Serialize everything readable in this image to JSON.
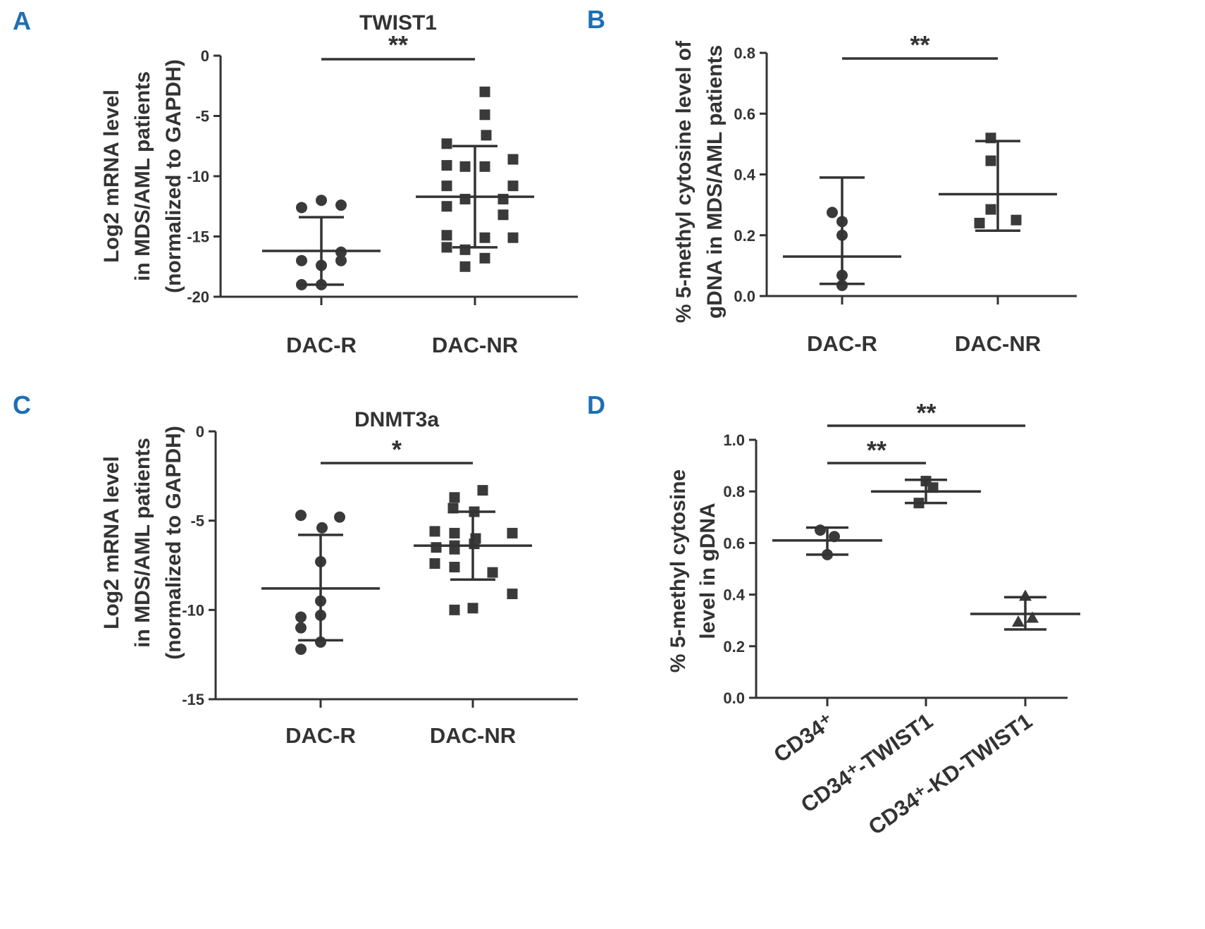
{
  "chart_data": [
    {
      "panel": "A",
      "type": "scatter",
      "title": "TWIST1",
      "ylabel": [
        "Log2  mRNA level",
        "in MDS/AML patients",
        "(normalized to GAPDH)"
      ],
      "categories": [
        "DAC-R",
        "DAC-NR"
      ],
      "ylim": [
        -20,
        0
      ],
      "yticks": [
        0,
        -5,
        -10,
        -15,
        -20
      ],
      "ytick_labels": [
        "0",
        "-5",
        "-10",
        "-15",
        "-20"
      ],
      "series": [
        {
          "name": "DAC-R",
          "marker": "circle",
          "mean": -16.2,
          "sd_upper": -13.4,
          "sd_lower": -19.0,
          "values": [
            -12.0,
            -12.4,
            -12.6,
            -16.3,
            -17.0,
            -17.4,
            -17.0,
            -19.0,
            -19.0
          ]
        },
        {
          "name": "DAC-NR",
          "marker": "square",
          "mean": -11.7,
          "sd_upper": -7.5,
          "sd_lower": -15.9,
          "values": [
            -3.0,
            -4.9,
            -6.6,
            -7.3,
            -8.6,
            -9.1,
            -9.2,
            -9.2,
            -10.8,
            -10.8,
            -11.9,
            -11.9,
            -12.5,
            -13.2,
            -14.9,
            -15.1,
            -15.1,
            -15.9,
            -16.1,
            -16.8,
            -17.5
          ]
        }
      ],
      "significance": {
        "label": "**",
        "between": [
          "DAC-R",
          "DAC-NR"
        ]
      }
    },
    {
      "panel": "B",
      "type": "scatter",
      "title": "",
      "ylabel": [
        "% 5-methyl cytosine level of",
        "gDNA in MDS/AML patients"
      ],
      "categories": [
        "DAC-R",
        "DAC-NR"
      ],
      "ylim": [
        0,
        0.8
      ],
      "yticks": [
        0,
        0.2,
        0.4,
        0.6,
        0.8
      ],
      "ytick_labels": [
        "0.0",
        "0.2",
        "0.4",
        "0.6",
        "0.8"
      ],
      "series": [
        {
          "name": "DAC-R",
          "marker": "circle",
          "mean": 0.13,
          "sd_upper": 0.39,
          "sd_lower": 0.04,
          "values": [
            0.275,
            0.245,
            0.2,
            0.068,
            0.035
          ]
        },
        {
          "name": "DAC-NR",
          "marker": "square",
          "mean": 0.335,
          "sd_upper": 0.51,
          "sd_lower": 0.215,
          "values": [
            0.52,
            0.445,
            0.285,
            0.24,
            0.25
          ]
        }
      ],
      "significance": {
        "label": "**",
        "between": [
          "DAC-R",
          "DAC-NR"
        ]
      }
    },
    {
      "panel": "C",
      "type": "scatter",
      "title": "DNMT3a",
      "ylabel": [
        "Log2  mRNA level",
        "in MDS/AML patients",
        "(normalized to GAPDH)"
      ],
      "categories": [
        "DAC-R",
        "DAC-NR"
      ],
      "ylim": [
        -15,
        0
      ],
      "yticks": [
        0,
        -5,
        -10,
        -15
      ],
      "ytick_labels": [
        "0",
        "-5",
        "-10",
        "-15"
      ],
      "series": [
        {
          "name": "DAC-R",
          "marker": "circle",
          "mean": -8.8,
          "sd_upper": -5.8,
          "sd_lower": -11.7,
          "values": [
            -4.7,
            -4.8,
            -5.4,
            -7.3,
            -9.5,
            -10.3,
            -10.4,
            -11.0,
            -11.8,
            -12.2
          ]
        },
        {
          "name": "DAC-NR",
          "marker": "square",
          "mean": -6.4,
          "sd_upper": -4.5,
          "sd_lower": -8.3,
          "values": [
            -3.3,
            -3.7,
            -4.3,
            -4.5,
            -5.6,
            -5.7,
            -5.7,
            -6.0,
            -6.3,
            -6.4,
            -6.5,
            -6.6,
            -7.4,
            -7.6,
            -7.9,
            -9.1,
            -9.9,
            -10.0
          ]
        }
      ],
      "significance": {
        "label": "*",
        "between": [
          "DAC-R",
          "DAC-NR"
        ]
      }
    },
    {
      "panel": "D",
      "type": "scatter",
      "title": "",
      "ylabel": [
        "% 5-methyl cytosine",
        "level in gDNA"
      ],
      "categories": [
        "CD34⁺",
        "CD34⁺-TWIST1",
        "CD34⁺-KD-TWIST1"
      ],
      "ylim": [
        0,
        1.0
      ],
      "yticks": [
        0,
        0.2,
        0.4,
        0.6,
        0.8,
        1.0
      ],
      "ytick_labels": [
        "0.0",
        "0.2",
        "0.4",
        "0.6",
        "0.8",
        "1.0"
      ],
      "series": [
        {
          "name": "CD34⁺",
          "marker": "circle",
          "mean": 0.61,
          "sd_upper": 0.66,
          "sd_lower": 0.555,
          "values": [
            0.65,
            0.625,
            0.555
          ]
        },
        {
          "name": "CD34⁺-TWIST1",
          "marker": "square",
          "mean": 0.8,
          "sd_upper": 0.845,
          "sd_lower": 0.755,
          "values": [
            0.84,
            0.815,
            0.755
          ]
        },
        {
          "name": "CD34⁺-KD-TWIST1",
          "marker": "triangle",
          "mean": 0.325,
          "sd_upper": 0.39,
          "sd_lower": 0.265,
          "values": [
            0.395,
            0.31,
            0.295
          ]
        }
      ],
      "significance": [
        {
          "label": "**",
          "between": [
            "CD34⁺",
            "CD34⁺-TWIST1"
          ]
        },
        {
          "label": "**",
          "between": [
            "CD34⁺",
            "CD34⁺-KD-TWIST1"
          ]
        }
      ]
    }
  ]
}
